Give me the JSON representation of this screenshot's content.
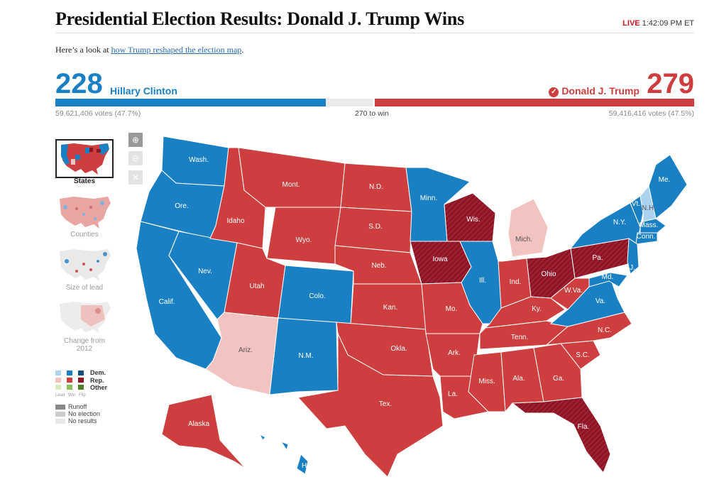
{
  "header": {
    "title": "Presidential Election Results: Donald J. Trump Wins",
    "live_tag": "LIVE",
    "live_time": "1:42:09 PM ET",
    "intro_prefix": "Here’s a look at ",
    "intro_link": "how Trump reshaped the election map",
    "intro_suffix": "."
  },
  "results": {
    "dem": {
      "electoral_votes": "228",
      "name": "Hillary Clinton",
      "votes": "59,621,406 votes (47.7%)",
      "color": "#1a80c4"
    },
    "rep": {
      "electoral_votes": "279",
      "name": "Donald J. Trump",
      "votes": "59,416,416 votes (47.5%)",
      "color": "#cf3e3e",
      "winner": true
    },
    "threshold_label": "270 to win",
    "total_electoral": 538
  },
  "map_views": [
    {
      "label": "States",
      "selected": true
    },
    {
      "label": "Counties",
      "selected": false
    },
    {
      "label": "Size of lead",
      "selected": false
    },
    {
      "label": "Change from 2012",
      "selected": false
    }
  ],
  "zoom_controls": {
    "zoom_in": "zoom-in-icon",
    "zoom_out": "zoom-out-icon",
    "reset": "close-icon"
  },
  "legend": {
    "rows": [
      "Dem.",
      "Rep.",
      "Other"
    ],
    "columns": [
      "Lead",
      "Win",
      "Flip"
    ],
    "status": [
      "Runoff",
      "No election",
      "No results"
    ]
  },
  "colors": {
    "dem": "#1a80c4",
    "rep": "#cf3e3e",
    "dem_lead": "#a9d3ee",
    "rep_lead": "#f2c3c0",
    "dem_flip": "#0f4e7d",
    "rep_flip": "#8e1426"
  },
  "states": [
    {
      "abbr": "Wash.",
      "party": "dem"
    },
    {
      "abbr": "Ore.",
      "party": "dem"
    },
    {
      "abbr": "Calif.",
      "party": "dem"
    },
    {
      "abbr": "Nev.",
      "party": "dem"
    },
    {
      "abbr": "Idaho",
      "party": "rep"
    },
    {
      "abbr": "Mont.",
      "party": "rep"
    },
    {
      "abbr": "Wyo.",
      "party": "rep"
    },
    {
      "abbr": "Utah",
      "party": "rep"
    },
    {
      "abbr": "Colo.",
      "party": "dem"
    },
    {
      "abbr": "Ariz.",
      "party": "rep_lead"
    },
    {
      "abbr": "N.M.",
      "party": "dem"
    },
    {
      "abbr": "N.D.",
      "party": "rep"
    },
    {
      "abbr": "S.D.",
      "party": "rep"
    },
    {
      "abbr": "Neb.",
      "party": "rep"
    },
    {
      "abbr": "Kan.",
      "party": "rep"
    },
    {
      "abbr": "Okla.",
      "party": "rep"
    },
    {
      "abbr": "Tex.",
      "party": "rep"
    },
    {
      "abbr": "Minn.",
      "party": "dem"
    },
    {
      "abbr": "Iowa",
      "party": "rep_flip"
    },
    {
      "abbr": "Mo.",
      "party": "rep"
    },
    {
      "abbr": "Ark.",
      "party": "rep"
    },
    {
      "abbr": "La.",
      "party": "rep"
    },
    {
      "abbr": "Wis.",
      "party": "rep_flip"
    },
    {
      "abbr": "Ill.",
      "party": "dem"
    },
    {
      "abbr": "Mich.",
      "party": "rep_lead"
    },
    {
      "abbr": "Ind.",
      "party": "rep"
    },
    {
      "abbr": "Ohio",
      "party": "rep_flip"
    },
    {
      "abbr": "Ky.",
      "party": "rep"
    },
    {
      "abbr": "Tenn.",
      "party": "rep"
    },
    {
      "abbr": "Miss.",
      "party": "rep"
    },
    {
      "abbr": "Ala.",
      "party": "rep"
    },
    {
      "abbr": "Ga.",
      "party": "rep"
    },
    {
      "abbr": "Fla.",
      "party": "rep_flip"
    },
    {
      "abbr": "S.C.",
      "party": "rep"
    },
    {
      "abbr": "N.C.",
      "party": "rep"
    },
    {
      "abbr": "Va.",
      "party": "dem"
    },
    {
      "abbr": "W.Va.",
      "party": "rep"
    },
    {
      "abbr": "Pa.",
      "party": "rep_flip"
    },
    {
      "abbr": "N.Y.",
      "party": "dem"
    },
    {
      "abbr": "Vt.",
      "party": "dem"
    },
    {
      "abbr": "N.H.",
      "party": "dem_lead"
    },
    {
      "abbr": "Me.",
      "party": "dem"
    },
    {
      "abbr": "Mass.",
      "party": "dem"
    },
    {
      "abbr": "Conn.",
      "party": "dem"
    },
    {
      "abbr": "N.J.",
      "party": "dem"
    },
    {
      "abbr": "Md.",
      "party": "dem"
    },
    {
      "abbr": "Alaska",
      "party": "rep"
    },
    {
      "abbr": "Hawaii",
      "party": "dem"
    }
  ]
}
